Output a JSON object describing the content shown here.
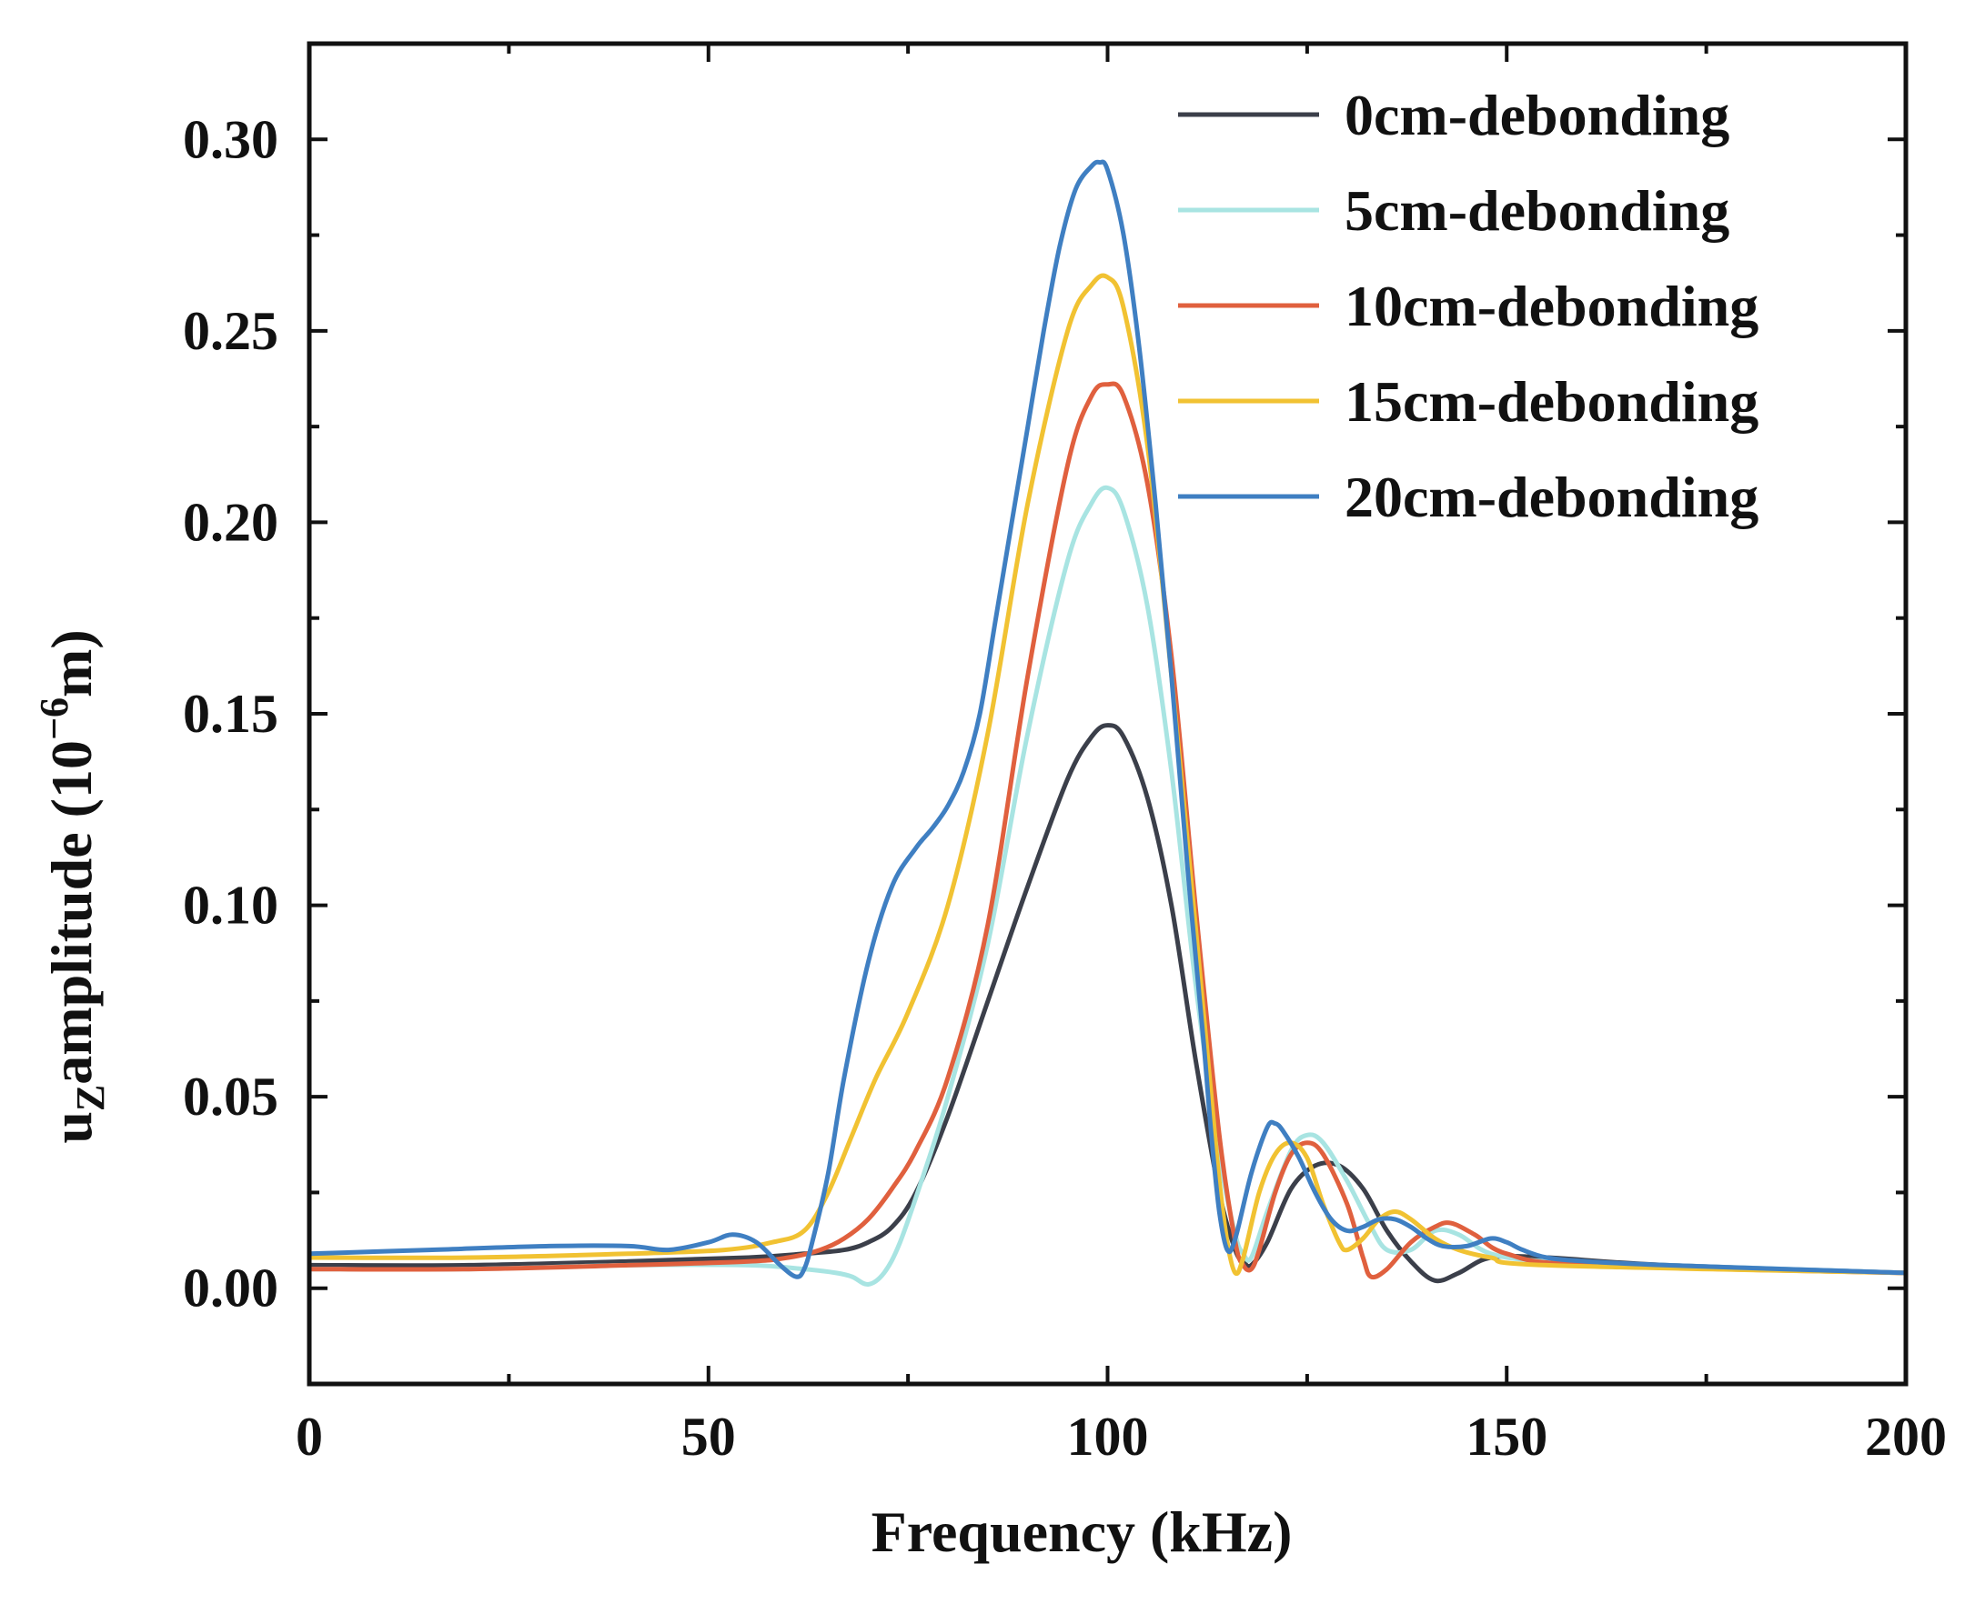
{
  "chart_data": {
    "type": "line",
    "title": "",
    "xlabel": "Frequency (kHz)",
    "ylabel": {
      "base": "u",
      "subscript": "Z",
      "text": "amplitude (10",
      "superscript": "−6",
      "unit_tail": "m)"
    },
    "xlim": [
      0,
      200
    ],
    "ylim": [
      -0.025,
      0.325
    ],
    "xticks": [
      0,
      50,
      100,
      150,
      200
    ],
    "xtick_labels": [
      "0",
      "50",
      "100",
      "150",
      "200"
    ],
    "yticks": [
      0.0,
      0.05,
      0.1,
      0.15,
      0.2,
      0.25,
      0.3
    ],
    "ytick_labels": [
      "0.00",
      "0.05",
      "0.10",
      "0.15",
      "0.20",
      "0.25",
      "0.30"
    ],
    "grid": false,
    "legend_position": "top-right",
    "series": [
      {
        "name": "0cm-debonding",
        "color": "#3b3f4a",
        "x": [
          0,
          20,
          40,
          55,
          62,
          67,
          70,
          73,
          76,
          80,
          85,
          90,
          95,
          98,
          100,
          102,
          105,
          108,
          111,
          114,
          116,
          117,
          118,
          120,
          123,
          126,
          129,
          132,
          135,
          138,
          141,
          144,
          148,
          155,
          170,
          200
        ],
        "y": [
          0.006,
          0.006,
          0.007,
          0.008,
          0.009,
          0.01,
          0.012,
          0.016,
          0.025,
          0.045,
          0.075,
          0.105,
          0.133,
          0.144,
          0.147,
          0.144,
          0.128,
          0.1,
          0.06,
          0.025,
          0.01,
          0.007,
          0.006,
          0.012,
          0.026,
          0.032,
          0.032,
          0.026,
          0.015,
          0.007,
          0.002,
          0.004,
          0.008,
          0.008,
          0.006,
          0.004
        ]
      },
      {
        "name": "5cm-debonding",
        "color": "#a8e4e2",
        "x": [
          0,
          20,
          40,
          55,
          62,
          66,
          68,
          70,
          72,
          74,
          77,
          80,
          85,
          90,
          95,
          98,
          100,
          102,
          105,
          108,
          111,
          114,
          116,
          117,
          118,
          120,
          123,
          125,
          127,
          130,
          133,
          135,
          138,
          141,
          144,
          148,
          155,
          170,
          200
        ],
        "y": [
          0.005,
          0.005,
          0.006,
          0.006,
          0.005,
          0.004,
          0.003,
          0.001,
          0.004,
          0.012,
          0.03,
          0.05,
          0.09,
          0.145,
          0.19,
          0.205,
          0.209,
          0.203,
          0.178,
          0.135,
          0.08,
          0.035,
          0.014,
          0.009,
          0.008,
          0.02,
          0.036,
          0.04,
          0.038,
          0.028,
          0.016,
          0.01,
          0.01,
          0.015,
          0.014,
          0.009,
          0.007,
          0.006,
          0.004
        ]
      },
      {
        "name": "10cm-debonding",
        "color": "#e0603e",
        "x": [
          0,
          20,
          40,
          55,
          60,
          64,
          67,
          70,
          73,
          76,
          80,
          85,
          90,
          95,
          98,
          100,
          102,
          105,
          108,
          111,
          114,
          116,
          117,
          118,
          119,
          121,
          123,
          125,
          127,
          130,
          132,
          133,
          135,
          138,
          141,
          143,
          146,
          150,
          160,
          200
        ],
        "y": [
          0.005,
          0.005,
          0.006,
          0.007,
          0.008,
          0.01,
          0.013,
          0.018,
          0.026,
          0.036,
          0.055,
          0.095,
          0.16,
          0.215,
          0.233,
          0.236,
          0.233,
          0.21,
          0.165,
          0.1,
          0.04,
          0.012,
          0.006,
          0.005,
          0.01,
          0.025,
          0.035,
          0.038,
          0.035,
          0.022,
          0.008,
          0.003,
          0.005,
          0.012,
          0.016,
          0.017,
          0.014,
          0.009,
          0.006,
          0.004
        ]
      },
      {
        "name": "15cm-debonding",
        "color": "#f1c232",
        "x": [
          0,
          20,
          40,
          52,
          58,
          62,
          65,
          68,
          71,
          75,
          80,
          85,
          90,
          95,
          98,
          100,
          102,
          105,
          108,
          111,
          113,
          114,
          115,
          116,
          117,
          119,
          121,
          123,
          125,
          127,
          129,
          130,
          132,
          134,
          136,
          138,
          141,
          144,
          148,
          155,
          200
        ],
        "y": [
          0.008,
          0.008,
          0.009,
          0.01,
          0.012,
          0.015,
          0.025,
          0.04,
          0.055,
          0.072,
          0.1,
          0.145,
          0.205,
          0.25,
          0.262,
          0.264,
          0.256,
          0.22,
          0.16,
          0.095,
          0.05,
          0.028,
          0.012,
          0.004,
          0.008,
          0.025,
          0.035,
          0.038,
          0.034,
          0.022,
          0.012,
          0.01,
          0.013,
          0.018,
          0.02,
          0.018,
          0.013,
          0.01,
          0.008,
          0.006,
          0.004
        ]
      },
      {
        "name": "20cm-debonding",
        "color": "#3f7fc2",
        "x": [
          0,
          15,
          30,
          40,
          45,
          50,
          53,
          56,
          59,
          61,
          62,
          63,
          65,
          67,
          70,
          73,
          76,
          78,
          80,
          82,
          84,
          86,
          88,
          90,
          92,
          94,
          96,
          98,
          99,
          100,
          102,
          104,
          106,
          108,
          110,
          112,
          113,
          114,
          115,
          116,
          118,
          120,
          121,
          122,
          124,
          126,
          128,
          130,
          132,
          134,
          136,
          138,
          140,
          142,
          145,
          148,
          150,
          152,
          155,
          160,
          170,
          185,
          200
        ],
        "y": [
          0.009,
          0.01,
          0.011,
          0.011,
          0.01,
          0.012,
          0.014,
          0.012,
          0.006,
          0.003,
          0.005,
          0.012,
          0.03,
          0.055,
          0.085,
          0.105,
          0.115,
          0.12,
          0.126,
          0.135,
          0.15,
          0.175,
          0.2,
          0.225,
          0.25,
          0.272,
          0.287,
          0.293,
          0.294,
          0.292,
          0.275,
          0.245,
          0.205,
          0.16,
          0.11,
          0.065,
          0.04,
          0.02,
          0.01,
          0.013,
          0.03,
          0.042,
          0.043,
          0.041,
          0.034,
          0.025,
          0.018,
          0.015,
          0.016,
          0.018,
          0.018,
          0.016,
          0.013,
          0.011,
          0.011,
          0.013,
          0.012,
          0.01,
          0.008,
          0.007,
          0.006,
          0.005,
          0.004
        ]
      }
    ]
  }
}
